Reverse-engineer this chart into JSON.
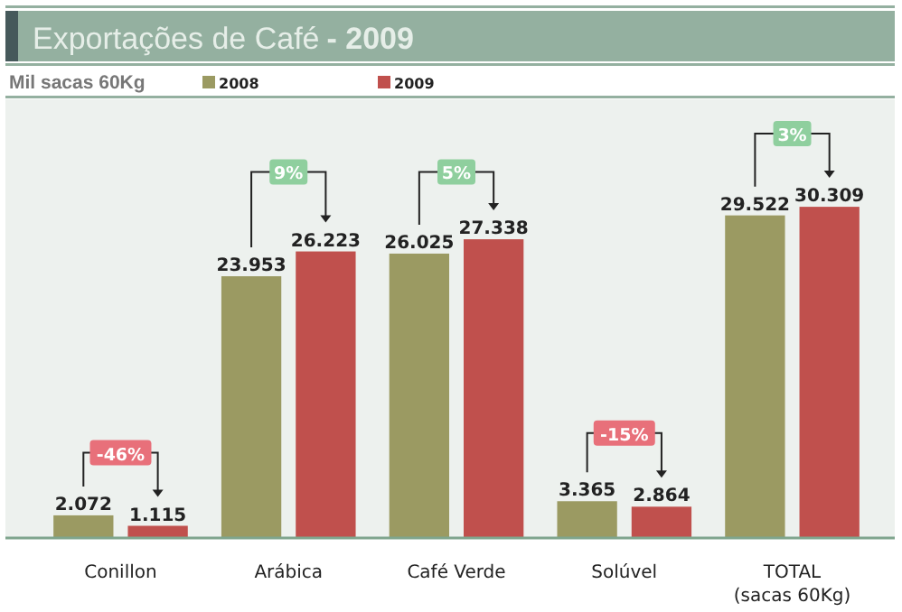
{
  "chart_data": {
    "type": "bar",
    "title": "Exportações de Café",
    "subtitle": "- 2009",
    "ylabel": "Mil sacas 60Kg",
    "categories": [
      "Conillon",
      "Arábica",
      "Café Verde",
      "Solúvel",
      "TOTAL\n(sacas 60Kg)"
    ],
    "series": [
      {
        "name": "2008",
        "color": "#9b9a62",
        "values": [
          2072,
          23953,
          26025,
          3365,
          29522
        ],
        "value_labels": [
          "2.072",
          "23.953",
          "26.025",
          "3.365",
          "29.522"
        ]
      },
      {
        "name": "2009",
        "color": "#c0504d",
        "values": [
          1115,
          26223,
          27338,
          2864,
          30309
        ],
        "value_labels": [
          "1.115",
          "26.223",
          "27.338",
          "2.864",
          "30.309"
        ]
      }
    ],
    "ylim": [
      0,
      38000
    ],
    "legend": "top",
    "grid": false,
    "annotations": [
      {
        "text": "-46%",
        "x": "Conillon",
        "y": 7800
      },
      {
        "text": "9%",
        "x": "Arábica",
        "y": 33500
      },
      {
        "text": "5%",
        "x": "Café Verde",
        "y": 33500
      },
      {
        "text": "-15%",
        "x": "Solúvel",
        "y": 9600
      },
      {
        "text": "3%",
        "x": "TOTAL\n(sacas 60Kg)",
        "y": 37000
      }
    ]
  }
}
